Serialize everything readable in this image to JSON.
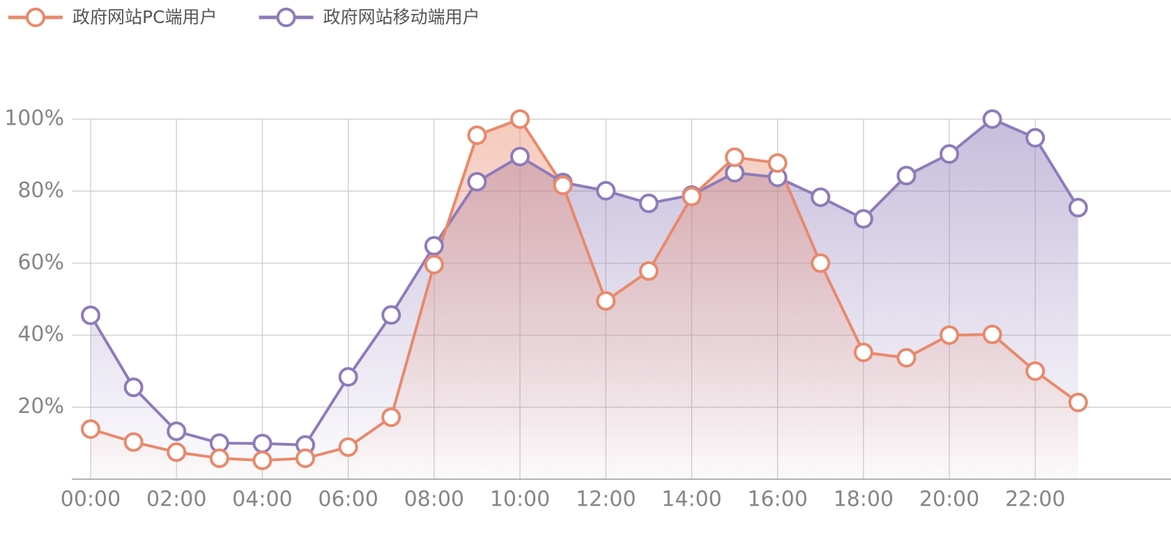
{
  "chart_data": {
    "type": "line",
    "categories": [
      "00:00",
      null,
      "02:00",
      null,
      "04:00",
      null,
      "06:00",
      null,
      "08:00",
      null,
      "10:00",
      null,
      "12:00",
      null,
      "14:00",
      null,
      "16:00",
      null,
      "18:00",
      null,
      "20:00",
      null,
      "22:00",
      null
    ],
    "series": [
      {
        "name": "政府网站PC端用户",
        "color": "#e8896b",
        "values": [
          13.9,
          10.3,
          7.5,
          5.8,
          5.2,
          5.8,
          8.9,
          17.2,
          59.6,
          95.5,
          100,
          81.6,
          49.5,
          57.8,
          78.5,
          89.4,
          87.8,
          60,
          35.2,
          33.7,
          40,
          40.2,
          30,
          21.3
        ]
      },
      {
        "name": "政府网站移动端用户",
        "color": "#8e7bb9",
        "values": [
          45.5,
          25.5,
          13.3,
          10,
          9.9,
          9.5,
          28.4,
          45.6,
          64.8,
          82.6,
          89.6,
          82.4,
          80.1,
          76.6,
          78.9,
          85.1,
          83.8,
          78.3,
          72.3,
          84.3,
          90.3,
          100,
          94.8,
          75.4
        ]
      }
    ],
    "ylim": [
      0,
      100
    ],
    "yticks": [
      {
        "value": 20,
        "label": "20%"
      },
      {
        "value": 40,
        "label": "40%"
      },
      {
        "value": 60,
        "label": "60%"
      },
      {
        "value": 80,
        "label": "80%"
      },
      {
        "value": 100,
        "label": "100%"
      }
    ],
    "grid": true,
    "area": true,
    "legend": "top-left"
  }
}
